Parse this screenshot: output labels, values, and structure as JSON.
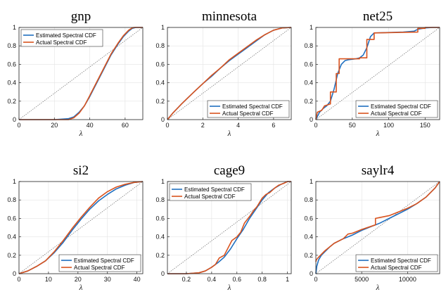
{
  "colors": {
    "estimated": "#1f6fc0",
    "actual": "#d9531e",
    "diagonal": "#555555"
  },
  "chart_data": [
    {
      "type": "line",
      "title": "gnp",
      "xlabel": "λ",
      "ylabel": "",
      "xlim": [
        0,
        70
      ],
      "ylim": [
        0,
        1
      ],
      "xticks": [
        0,
        20,
        40,
        60
      ],
      "yticks": [
        0,
        0.2,
        0.4,
        0.6,
        0.8,
        1
      ],
      "legend": "top-left",
      "grid": true,
      "series": [
        {
          "name": "Estimated Spectral CDF",
          "x": [
            0,
            20,
            28,
            31,
            34,
            37,
            40,
            44,
            48,
            52,
            56,
            59,
            62,
            64,
            66,
            70
          ],
          "y": [
            0,
            0,
            0.01,
            0.03,
            0.08,
            0.15,
            0.25,
            0.4,
            0.55,
            0.7,
            0.82,
            0.9,
            0.96,
            0.99,
            1,
            1
          ]
        },
        {
          "name": "Actual Spectral CDF",
          "x": [
            0,
            20,
            28,
            31,
            34,
            37,
            40,
            44,
            48,
            52,
            56,
            59,
            62,
            64,
            65,
            70
          ],
          "y": [
            0,
            0,
            0,
            0.02,
            0.07,
            0.15,
            0.26,
            0.41,
            0.56,
            0.71,
            0.83,
            0.91,
            0.97,
            0.995,
            1,
            1
          ]
        }
      ]
    },
    {
      "type": "line",
      "title": "minnesota",
      "xlabel": "λ",
      "ylabel": "",
      "xlim": [
        0,
        7
      ],
      "ylim": [
        0,
        1
      ],
      "xticks": [
        0,
        2,
        4,
        6
      ],
      "yticks": [
        0,
        0.2,
        0.4,
        0.6,
        0.8,
        1
      ],
      "legend": "bottom-right",
      "grid": true,
      "series": [
        {
          "name": "Estimated Spectral CDF",
          "x": [
            0,
            0.3,
            0.8,
            1.5,
            2,
            2.5,
            3,
            3.5,
            4,
            4.5,
            5,
            5.5,
            6,
            6.5,
            7
          ],
          "y": [
            0,
            0.07,
            0.17,
            0.3,
            0.39,
            0.47,
            0.56,
            0.64,
            0.71,
            0.78,
            0.85,
            0.92,
            0.97,
            0.995,
            1
          ]
        },
        {
          "name": "Actual Spectral CDF",
          "x": [
            0,
            0.3,
            0.8,
            1.5,
            2,
            2.5,
            3,
            3.5,
            4,
            4.5,
            5,
            5.5,
            6,
            6.5,
            7
          ],
          "y": [
            0,
            0.07,
            0.17,
            0.3,
            0.39,
            0.48,
            0.56,
            0.65,
            0.72,
            0.79,
            0.86,
            0.92,
            0.97,
            0.995,
            1
          ]
        }
      ]
    },
    {
      "type": "line",
      "title": "net25",
      "xlabel": "λ",
      "ylabel": "",
      "xlim": [
        0,
        170
      ],
      "ylim": [
        0,
        1
      ],
      "xticks": [
        0,
        50,
        100,
        150
      ],
      "yticks": [
        0,
        0.2,
        0.4,
        0.6,
        0.8,
        1
      ],
      "legend": "bottom-right",
      "grid": true,
      "series": [
        {
          "name": "Estimated Spectral CDF",
          "x": [
            0,
            5,
            10,
            15,
            20,
            25,
            30,
            35,
            40,
            45,
            55,
            60,
            65,
            70,
            75,
            80,
            100,
            120,
            135,
            140,
            150,
            160,
            170
          ],
          "y": [
            0,
            0.08,
            0.12,
            0.15,
            0.2,
            0.33,
            0.5,
            0.6,
            0.64,
            0.65,
            0.66,
            0.67,
            0.7,
            0.78,
            0.9,
            0.94,
            0.945,
            0.95,
            0.96,
            0.98,
            0.995,
            1,
            1
          ]
        },
        {
          "name": "Actual Spectral CDF",
          "x": [
            0,
            2,
            8,
            12,
            20,
            20,
            28,
            28,
            32,
            32,
            60,
            60,
            70,
            70,
            80,
            80,
            140,
            140,
            150,
            150,
            170
          ],
          "y": [
            0,
            0.08,
            0.1,
            0.15,
            0.17,
            0.3,
            0.3,
            0.5,
            0.5,
            0.66,
            0.66,
            0.67,
            0.67,
            0.87,
            0.87,
            0.94,
            0.95,
            0.99,
            0.99,
            1,
            1
          ]
        }
      ]
    },
    {
      "type": "line",
      "title": "si2",
      "xlabel": "λ",
      "ylabel": "",
      "xlim": [
        0,
        42
      ],
      "ylim": [
        0,
        1
      ],
      "xticks": [
        0,
        10,
        20,
        30,
        40
      ],
      "yticks": [
        0,
        0.2,
        0.4,
        0.6,
        0.8,
        1
      ],
      "legend": "bottom-right",
      "grid": true,
      "series": [
        {
          "name": "Estimated Spectral CDF",
          "x": [
            0,
            3,
            6,
            9,
            12,
            15,
            18,
            21,
            24,
            27,
            30,
            33,
            36,
            39,
            42
          ],
          "y": [
            0,
            0.03,
            0.08,
            0.14,
            0.23,
            0.34,
            0.47,
            0.59,
            0.7,
            0.79,
            0.86,
            0.92,
            0.96,
            0.99,
            1
          ]
        },
        {
          "name": "Actual Spectral CDF",
          "x": [
            0,
            3,
            6,
            9,
            12,
            15,
            18,
            21,
            24,
            27,
            30,
            33,
            36,
            39,
            42
          ],
          "y": [
            0,
            0.03,
            0.08,
            0.14,
            0.24,
            0.36,
            0.49,
            0.61,
            0.72,
            0.82,
            0.89,
            0.94,
            0.97,
            0.99,
            1
          ]
        }
      ]
    },
    {
      "type": "line",
      "title": "cage9",
      "xlabel": "λ",
      "ylabel": "",
      "xlim": [
        0.05,
        1.03
      ],
      "ylim": [
        0,
        1
      ],
      "xticks": [
        0.2,
        0.4,
        0.6,
        0.8,
        1
      ],
      "yticks": [
        0,
        0.2,
        0.4,
        0.6,
        0.8,
        1
      ],
      "legend": "top-left",
      "grid": true,
      "series": [
        {
          "name": "Estimated Spectral CDF",
          "x": [
            0.05,
            0.2,
            0.3,
            0.35,
            0.4,
            0.45,
            0.5,
            0.55,
            0.6,
            0.65,
            0.7,
            0.75,
            0.8,
            0.85,
            0.9,
            0.95,
            1,
            1.03
          ],
          "y": [
            0,
            0,
            0.01,
            0.03,
            0.07,
            0.12,
            0.18,
            0.27,
            0.38,
            0.48,
            0.6,
            0.7,
            0.8,
            0.88,
            0.93,
            0.97,
            1,
            1
          ]
        },
        {
          "name": "Actual Spectral CDF",
          "x": [
            0.05,
            0.2,
            0.3,
            0.35,
            0.4,
            0.43,
            0.46,
            0.5,
            0.53,
            0.56,
            0.6,
            0.63,
            0.66,
            0.7,
            0.73,
            0.76,
            0.8,
            0.83,
            0.86,
            0.9,
            0.93,
            0.97,
            1,
            1.03
          ],
          "y": [
            0,
            0,
            0.01,
            0.03,
            0.07,
            0.1,
            0.17,
            0.2,
            0.28,
            0.36,
            0.4,
            0.45,
            0.55,
            0.62,
            0.68,
            0.73,
            0.82,
            0.86,
            0.88,
            0.93,
            0.96,
            0.98,
            1,
            1
          ]
        }
      ]
    },
    {
      "type": "line",
      "title": "saylr4",
      "xlabel": "λ",
      "ylabel": "",
      "xlim": [
        0,
        13500
      ],
      "ylim": [
        0,
        1
      ],
      "xticks": [
        0,
        5000,
        10000
      ],
      "yticks": [
        0,
        0.2,
        0.4,
        0.6,
        0.8,
        1
      ],
      "legend": "bottom-right",
      "grid": true,
      "series": [
        {
          "name": "Estimated Spectral CDF",
          "x": [
            0,
            100,
            300,
            600,
            1000,
            1500,
            2000,
            3000,
            4000,
            5000,
            6000,
            7000,
            8000,
            9000,
            10000,
            11000,
            12000,
            13000,
            13500
          ],
          "y": [
            0,
            0.08,
            0.15,
            0.2,
            0.24,
            0.29,
            0.33,
            0.38,
            0.42,
            0.47,
            0.51,
            0.55,
            0.6,
            0.65,
            0.7,
            0.76,
            0.83,
            0.93,
            1
          ]
        },
        {
          "name": "Actual Spectral CDF",
          "x": [
            0,
            50,
            300,
            600,
            1000,
            1500,
            2000,
            3000,
            3500,
            4000,
            5000,
            6500,
            6500,
            7000,
            8000,
            9000,
            10000,
            11000,
            12000,
            13000,
            13500
          ],
          "y": [
            0.13,
            0.15,
            0.18,
            0.21,
            0.25,
            0.29,
            0.33,
            0.38,
            0.43,
            0.44,
            0.48,
            0.53,
            0.6,
            0.61,
            0.63,
            0.67,
            0.71,
            0.76,
            0.83,
            0.93,
            1
          ]
        }
      ]
    }
  ]
}
